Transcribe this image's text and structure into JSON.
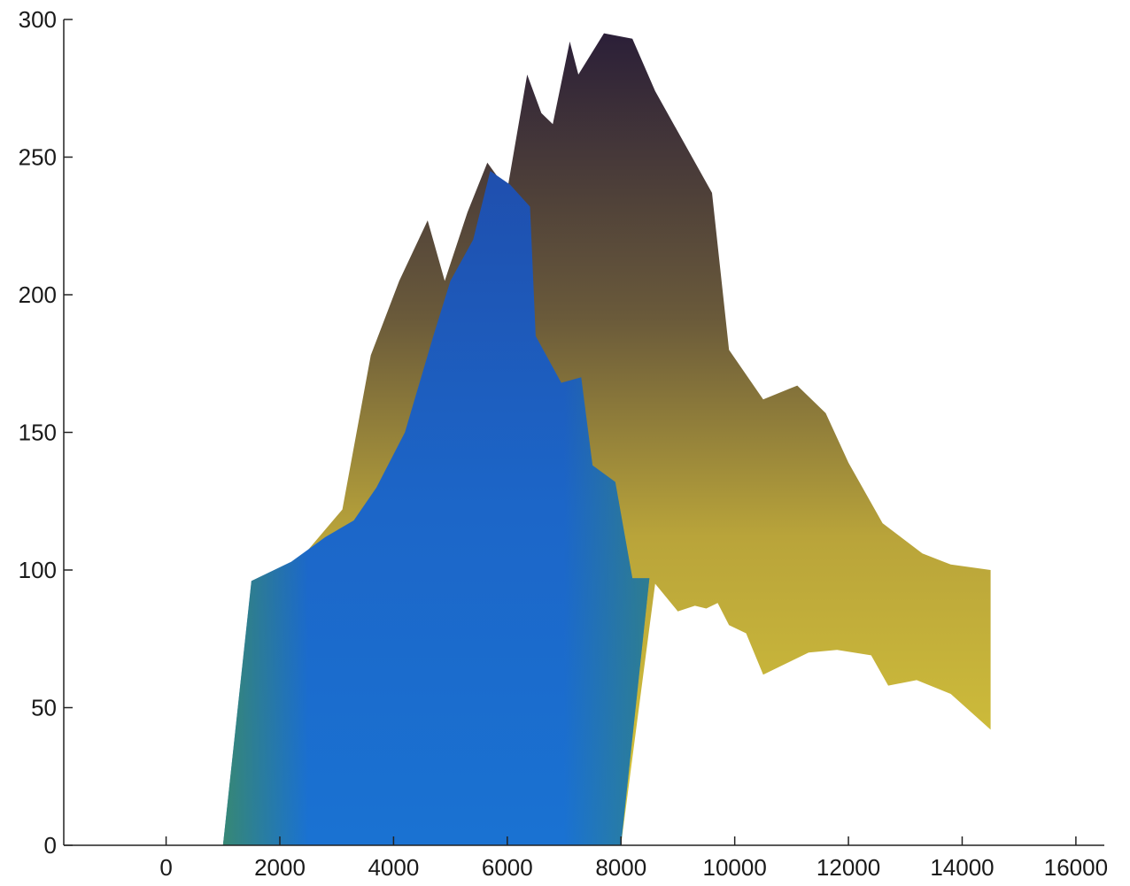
{
  "chart_data": {
    "type": "area",
    "title": "",
    "xlabel": "",
    "ylabel": "",
    "xlim": [
      -1800,
      16500
    ],
    "ylim": [
      0,
      300
    ],
    "x_ticks": [
      0,
      2000,
      4000,
      6000,
      8000,
      10000,
      12000,
      14000,
      16000
    ],
    "y_ticks": [
      0,
      50,
      100,
      150,
      200,
      250,
      300
    ],
    "x_tick_labels": [
      "0",
      "2000",
      "4000",
      "6000",
      "8000",
      "10000",
      "12000",
      "14000",
      "16000"
    ],
    "y_tick_labels": [
      "0",
      "50",
      "100",
      "150",
      "200",
      "250",
      "300"
    ],
    "grid": false,
    "legend": "none",
    "colors": {
      "outer_top": "#2b1f38",
      "outer_mid": "#6a5a3a",
      "outer_low": "#b9a43a",
      "outer_bottom": "#d8c83a",
      "inner_top": "#1f4fae",
      "inner_mid": "#1c66c8",
      "inner_bottom": "#1a72d2",
      "inner_edge": "#3a8a6a",
      "axis": "#222222"
    },
    "series": [
      {
        "x": [
          1000,
          1600,
          2400,
          3100,
          3600,
          4100,
          4600,
          4900,
          5300,
          5650,
          6000,
          6350,
          6600,
          6800,
          7100,
          7250,
          7700,
          8200,
          8600,
          9600,
          9900,
          10500,
          11100,
          11600,
          12000,
          12600,
          13300,
          13800,
          14500,
          14500,
          13800,
          13200,
          12700,
          12400,
          11800,
          11300,
          10800,
          10500,
          10200,
          9900,
          9700,
          9500,
          9300,
          9000,
          8600,
          8000
        ],
        "y": [
          0,
          96,
          105,
          122,
          178,
          205,
          227,
          205,
          230,
          248,
          238,
          280,
          266,
          262,
          292,
          280,
          295,
          293,
          274,
          237,
          180,
          162,
          167,
          157,
          139,
          117,
          106,
          102,
          100,
          42,
          55,
          60,
          58,
          69,
          71,
          70,
          65,
          62,
          77,
          80,
          88,
          86,
          87,
          85,
          95,
          0
        ]
      },
      {
        "x": [
          1000,
          1500,
          2200,
          2800,
          3300,
          3700,
          4200,
          4700,
          5000,
          5400,
          5700,
          6050,
          6400,
          6500,
          6950,
          7300,
          7500,
          7900,
          8200,
          8500,
          8000
        ],
        "y": [
          0,
          96,
          103,
          112,
          118,
          130,
          150,
          185,
          205,
          220,
          245,
          240,
          232,
          185,
          168,
          170,
          138,
          132,
          97,
          97,
          0
        ]
      }
    ]
  }
}
